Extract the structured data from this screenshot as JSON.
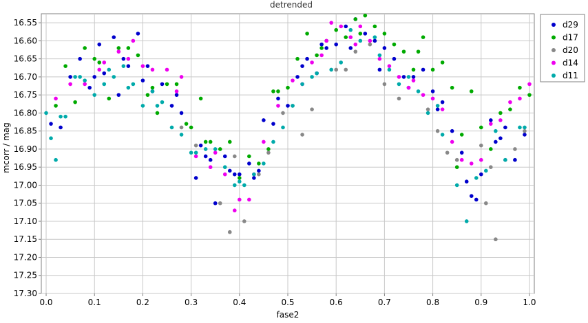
{
  "chart_data": {
    "type": "scatter",
    "title": "detrended",
    "xlabel": "fase2",
    "ylabel": "mcorr / mag",
    "xlim": [
      -0.01,
      1.01
    ],
    "ylim": [
      17.3,
      16.525
    ],
    "y_inverted": true,
    "grid": true,
    "legend_position": "top-right-outside",
    "x_ticks": [
      0.0,
      0.1,
      0.2,
      0.3,
      0.4,
      0.5,
      0.6,
      0.7,
      0.8,
      0.9,
      1.0
    ],
    "x_tick_labels": [
      "0.0",
      "0.1",
      "0.2",
      "0.3",
      "0.4",
      "0.5",
      "0.6",
      "0.7",
      "0.8",
      "0.9",
      "1.0"
    ],
    "y_ticks": [
      16.55,
      16.6,
      16.65,
      16.7,
      16.75,
      16.8,
      16.85,
      16.9,
      16.95,
      17.0,
      17.05,
      17.1,
      17.15,
      17.2,
      17.25,
      17.3
    ],
    "y_tick_labels": [
      "16.55",
      "16.60",
      "16.65",
      "16.70",
      "16.75",
      "16.80",
      "16.85",
      "16.90",
      "16.95",
      "17.00",
      "17.05",
      "17.10",
      "17.15",
      "17.20",
      "17.25",
      "17.30"
    ],
    "series": [
      {
        "name": "d29",
        "color": "#0000cc",
        "x": [
          0.01,
          0.03,
          0.05,
          0.07,
          0.09,
          0.11,
          0.12,
          0.14,
          0.16,
          0.17,
          0.19,
          0.2,
          0.22,
          0.24,
          0.26,
          0.28,
          0.31,
          0.32,
          0.34,
          0.35,
          0.37,
          0.39,
          0.4,
          0.42,
          0.44,
          0.45,
          0.47,
          0.5,
          0.52,
          0.54,
          0.56,
          0.58,
          0.6,
          0.62,
          0.64,
          0.66,
          0.68,
          0.7,
          0.72,
          0.74,
          0.76,
          0.78,
          0.8,
          0.82,
          0.84,
          0.86,
          0.87,
          0.89,
          0.9,
          0.92,
          0.94,
          0.95,
          0.97,
          0.99,
          0.1,
          0.15,
          0.21,
          0.27,
          0.33,
          0.38,
          0.43,
          0.48,
          0.53,
          0.57,
          0.63,
          0.69,
          0.75,
          0.81,
          0.88,
          0.93
        ],
        "y": [
          16.83,
          16.84,
          16.7,
          16.65,
          16.73,
          16.61,
          16.69,
          16.59,
          16.65,
          16.67,
          16.58,
          16.71,
          16.74,
          16.72,
          16.78,
          16.8,
          16.98,
          16.89,
          16.93,
          17.05,
          16.92,
          16.97,
          16.97,
          16.94,
          16.96,
          16.82,
          16.83,
          16.78,
          16.7,
          16.65,
          16.69,
          16.62,
          16.61,
          16.56,
          16.54,
          16.58,
          16.6,
          16.62,
          16.65,
          16.7,
          16.7,
          16.68,
          16.74,
          16.77,
          16.85,
          16.91,
          16.99,
          17.04,
          16.97,
          16.82,
          16.87,
          16.84,
          16.93,
          16.86,
          16.7,
          16.75,
          16.67,
          16.75,
          16.92,
          16.96,
          16.98,
          16.76,
          16.67,
          16.61,
          16.62,
          16.68,
          16.73,
          16.79,
          17.03,
          16.88
        ]
      },
      {
        "name": "d17",
        "color": "#00aa00",
        "x": [
          0.02,
          0.04,
          0.06,
          0.08,
          0.1,
          0.13,
          0.15,
          0.17,
          0.19,
          0.21,
          0.23,
          0.25,
          0.27,
          0.29,
          0.3,
          0.32,
          0.34,
          0.36,
          0.38,
          0.4,
          0.42,
          0.44,
          0.46,
          0.48,
          0.5,
          0.52,
          0.54,
          0.56,
          0.58,
          0.6,
          0.62,
          0.64,
          0.66,
          0.68,
          0.7,
          0.72,
          0.74,
          0.76,
          0.78,
          0.8,
          0.82,
          0.84,
          0.86,
          0.88,
          0.9,
          0.92,
          0.94,
          0.96,
          0.98,
          1.0,
          0.11,
          0.22,
          0.33,
          0.47,
          0.57,
          0.65,
          0.77,
          0.85
        ],
        "y": [
          16.78,
          16.67,
          16.77,
          16.62,
          16.65,
          16.76,
          16.62,
          16.62,
          16.64,
          16.75,
          16.8,
          16.72,
          16.72,
          16.83,
          16.84,
          16.76,
          16.88,
          16.9,
          16.88,
          16.98,
          16.92,
          16.94,
          16.9,
          16.74,
          16.73,
          16.65,
          16.58,
          16.64,
          16.6,
          16.57,
          16.59,
          16.54,
          16.53,
          16.56,
          16.58,
          16.61,
          16.63,
          16.68,
          16.59,
          16.68,
          16.66,
          16.73,
          16.86,
          16.74,
          16.84,
          16.9,
          16.8,
          16.79,
          16.73,
          16.75,
          16.66,
          16.73,
          16.88,
          16.74,
          16.62,
          16.58,
          16.63,
          16.95
        ]
      },
      {
        "name": "d20",
        "color": "#888888",
        "x": [
          0.28,
          0.31,
          0.36,
          0.38,
          0.41,
          0.46,
          0.49,
          0.51,
          0.55,
          0.6,
          0.62,
          0.64,
          0.67,
          0.7,
          0.73,
          0.79,
          0.81,
          0.83,
          0.85,
          0.9,
          0.91,
          0.92,
          0.93,
          0.95,
          0.97,
          0.99,
          0.39,
          0.44,
          0.53
        ],
        "y": [
          16.84,
          16.89,
          17.05,
          17.13,
          17.1,
          16.91,
          16.8,
          16.78,
          16.79,
          16.68,
          16.68,
          16.63,
          16.61,
          16.72,
          16.76,
          16.79,
          16.85,
          16.91,
          16.93,
          16.89,
          17.05,
          16.95,
          17.15,
          16.93,
          16.9,
          16.85,
          16.92,
          16.97,
          16.86
        ]
      },
      {
        "name": "d14",
        "color": "#ee00ee",
        "x": [
          0.02,
          0.05,
          0.08,
          0.12,
          0.15,
          0.18,
          0.2,
          0.22,
          0.25,
          0.28,
          0.31,
          0.34,
          0.37,
          0.39,
          0.4,
          0.42,
          0.45,
          0.48,
          0.51,
          0.53,
          0.55,
          0.57,
          0.59,
          0.61,
          0.63,
          0.65,
          0.67,
          0.69,
          0.71,
          0.73,
          0.75,
          0.78,
          0.8,
          0.82,
          0.84,
          0.86,
          0.88,
          0.9,
          0.92,
          0.94,
          0.96,
          0.98,
          1.0,
          0.11,
          0.17,
          0.27,
          0.35,
          0.43,
          0.58,
          0.64,
          0.76
        ],
        "y": [
          16.76,
          16.72,
          16.72,
          16.66,
          16.63,
          16.6,
          16.67,
          16.68,
          16.68,
          16.7,
          16.92,
          16.95,
          16.97,
          17.07,
          17.04,
          17.04,
          16.88,
          16.78,
          16.71,
          16.72,
          16.66,
          16.64,
          16.55,
          16.56,
          16.59,
          16.56,
          16.6,
          16.65,
          16.67,
          16.7,
          16.73,
          16.75,
          16.76,
          16.79,
          16.88,
          16.93,
          16.94,
          16.93,
          16.83,
          16.82,
          16.77,
          16.76,
          16.72,
          16.68,
          16.65,
          16.74,
          16.91,
          16.97,
          16.6,
          16.61,
          16.71
        ]
      },
      {
        "name": "d11",
        "color": "#00aaaa",
        "x": [
          0.0,
          0.01,
          0.02,
          0.03,
          0.04,
          0.06,
          0.08,
          0.1,
          0.12,
          0.14,
          0.16,
          0.18,
          0.2,
          0.22,
          0.24,
          0.26,
          0.28,
          0.3,
          0.33,
          0.35,
          0.37,
          0.39,
          0.41,
          0.43,
          0.45,
          0.47,
          0.49,
          0.51,
          0.53,
          0.56,
          0.59,
          0.61,
          0.63,
          0.65,
          0.68,
          0.71,
          0.73,
          0.75,
          0.77,
          0.79,
          0.82,
          0.85,
          0.87,
          0.89,
          0.91,
          0.93,
          0.95,
          0.98,
          0.99,
          0.07,
          0.13,
          0.17,
          0.23,
          0.31,
          0.4,
          0.55,
          0.69,
          0.81
        ],
        "y": [
          16.8,
          16.87,
          16.93,
          16.81,
          16.81,
          16.7,
          16.71,
          16.75,
          16.72,
          16.7,
          16.67,
          16.72,
          16.78,
          16.74,
          16.77,
          16.84,
          16.86,
          16.91,
          16.9,
          16.9,
          16.95,
          17.0,
          17.0,
          16.97,
          16.94,
          16.88,
          16.84,
          16.78,
          16.72,
          16.69,
          16.68,
          16.66,
          16.57,
          16.6,
          16.59,
          16.68,
          16.72,
          16.7,
          16.74,
          16.8,
          16.86,
          17.0,
          17.1,
          16.98,
          16.96,
          16.85,
          16.93,
          16.84,
          16.84,
          16.7,
          16.68,
          16.73,
          16.78,
          16.91,
          16.99,
          16.7,
          16.64,
          16.78
        ]
      }
    ]
  }
}
